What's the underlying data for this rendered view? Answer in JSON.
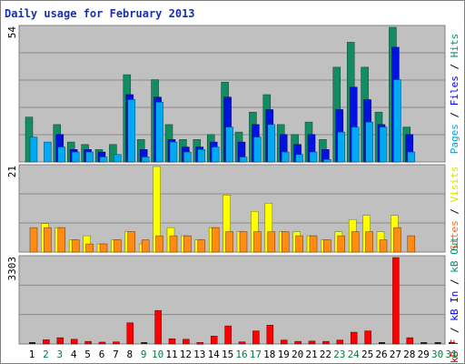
{
  "chart_data": {
    "type": "bar",
    "title": "Daily usage for February 2013",
    "days": [
      "1",
      "2",
      "3",
      "4",
      "5",
      "6",
      "7",
      "8",
      "9",
      "10",
      "11",
      "12",
      "13",
      "14",
      "15",
      "16",
      "17",
      "18",
      "19",
      "20",
      "21",
      "22",
      "23",
      "24",
      "25",
      "26",
      "27",
      "28",
      "29",
      "30",
      "31"
    ],
    "weekend_days": [
      "2",
      "3",
      "9",
      "10",
      "16",
      "17",
      "23",
      "24",
      "30",
      "31"
    ],
    "day_label_colors": {
      "weekday": "#000000",
      "weekend": "#008040"
    },
    "panels": [
      {
        "id": "top",
        "max_label": "54",
        "ymax": 54,
        "axis_words": [
          {
            "text": "Pages",
            "color": "#00a5e0"
          },
          {
            "text": " / ",
            "color": "#000000"
          },
          {
            "text": "Files",
            "color": "#0000e0"
          },
          {
            "text": " / ",
            "color": "#000000"
          },
          {
            "text": "Hits",
            "color": "#009070"
          }
        ],
        "series": [
          {
            "name": "Hits",
            "color": "#138c63",
            "values": [
              18,
              0,
              15,
              8,
              7,
              5,
              7,
              35,
              9,
              33,
              15,
              9,
              9,
              11,
              32,
              12,
              20,
              27,
              15,
              11,
              16,
              9,
              38,
              48,
              38,
              20,
              54,
              14,
              0,
              0,
              0
            ]
          },
          {
            "name": "Files",
            "color": "#0012e0",
            "values": [
              0,
              0,
              11,
              5,
              5,
              4,
              0,
              27,
              5,
              26,
              9,
              6,
              6,
              8,
              26,
              8,
              15,
              21,
              11,
              7,
              11,
              5,
              21,
              30,
              25,
              15,
              46,
              11,
              0,
              0,
              0
            ]
          },
          {
            "name": "Pages",
            "color": "#00aaf0",
            "values": [
              10,
              8,
              6,
              4,
              4,
              2,
              3,
              25,
              2,
              24,
              8,
              4,
              5,
              6,
              14,
              2,
              10,
              15,
              4,
              3,
              4,
              1,
              12,
              14,
              16,
              14,
              33,
              4,
              0,
              0,
              0
            ]
          }
        ]
      },
      {
        "id": "middle",
        "max_label": "21",
        "ymax": 21,
        "axis_words": [
          {
            "text": "Sites",
            "color": "#f07020"
          },
          {
            "text": " / ",
            "color": "#000000"
          },
          {
            "text": "Visits",
            "color": "#e0e000"
          }
        ],
        "series": [
          {
            "name": "Visits",
            "color": "#ffff00",
            "values": [
              0,
              7,
              6,
              3,
              4,
              2,
              3,
              5,
              2,
              21,
              6,
              4,
              3,
              6,
              14,
              5,
              10,
              12,
              5,
              5,
              4,
              3,
              5,
              8,
              9,
              5,
              9,
              0,
              0,
              0,
              0
            ]
          },
          {
            "name": "Sites",
            "color": "#ff8c14",
            "values": [
              6,
              6,
              6,
              3,
              2,
              2,
              3,
              5,
              3,
              4,
              4,
              4,
              3,
              6,
              5,
              5,
              5,
              5,
              5,
              4,
              4,
              3,
              4,
              5,
              5,
              3,
              6,
              4,
              0,
              0,
              0
            ]
          }
        ]
      },
      {
        "id": "bottom",
        "max_label": "3303",
        "ymax": 3303,
        "axis_words": [
          {
            "text": "kB F",
            "color": "#e00000"
          },
          {
            "text": " / ",
            "color": "#000000"
          },
          {
            "text": "kB In",
            "color": "#0000e0"
          },
          {
            "text": " / ",
            "color": "#000000"
          },
          {
            "text": "kB Out",
            "color": "#009070"
          }
        ],
        "series": [
          {
            "name": "kB F",
            "color": "#ff0000",
            "values": [
              0,
              160,
              240,
              180,
              100,
              70,
              80,
              810,
              0,
              1280,
              200,
              180,
              60,
              300,
              690,
              80,
              500,
              720,
              150,
              100,
              110,
              100,
              150,
              450,
              500,
              0,
              3303,
              240,
              0,
              0,
              0
            ]
          }
        ]
      }
    ]
  }
}
